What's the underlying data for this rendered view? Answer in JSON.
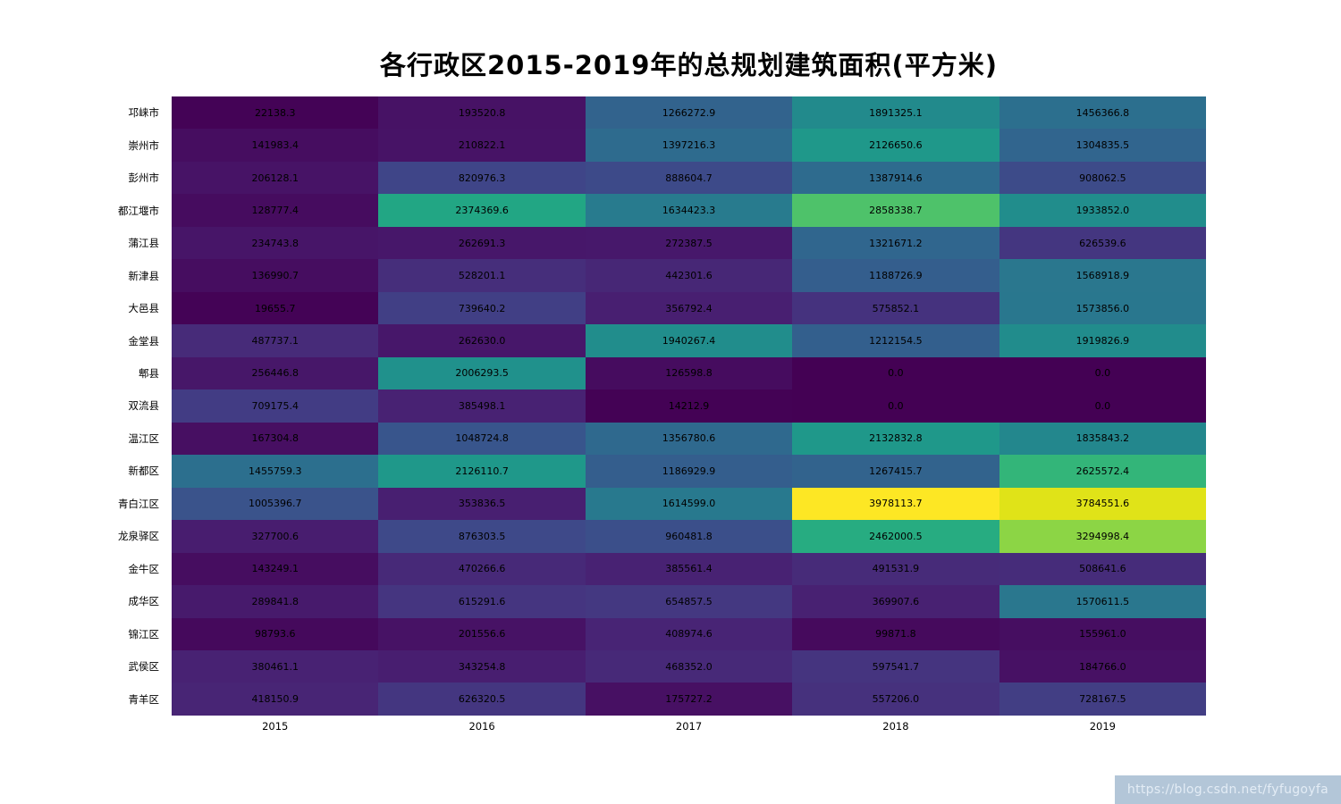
{
  "title": "各行政区2015-2019年的总规划建筑面积(平方米)",
  "watermark": "https://blog.csdn.net/fyfugoyfa",
  "chart_data": {
    "type": "heatmap",
    "title": "各行政区2015-2019年的总规划建筑面积(平方米)",
    "xlabel": "",
    "ylabel": "",
    "colormap": "viridis",
    "vmin": 0.0,
    "vmax": 3978113.7,
    "grid": false,
    "legend": "none",
    "columns": [
      "2015",
      "2016",
      "2017",
      "2018",
      "2019"
    ],
    "rows": [
      "邛崃市",
      "崇州市",
      "彭州市",
      "都江堰市",
      "蒲江县",
      "新津县",
      "大邑县",
      "金堂县",
      "郫县",
      "双流县",
      "温江区",
      "新都区",
      "青白江区",
      "龙泉驿区",
      "金牛区",
      "成华区",
      "锦江区",
      "武侯区",
      "青羊区"
    ],
    "values": [
      [
        "22138.3",
        "193520.8",
        "1266272.9",
        "1891325.1",
        "1456366.8"
      ],
      [
        "141983.4",
        "210822.1",
        "1397216.3",
        "2126650.6",
        "1304835.5"
      ],
      [
        "206128.1",
        "820976.3",
        "888604.7",
        "1387914.6",
        "908062.5"
      ],
      [
        "128777.4",
        "2374369.6",
        "1634423.3",
        "2858338.7",
        "1933852.0"
      ],
      [
        "234743.8",
        "262691.3",
        "272387.5",
        "1321671.2",
        "626539.6"
      ],
      [
        "136990.7",
        "528201.1",
        "442301.6",
        "1188726.9",
        "1568918.9"
      ],
      [
        "19655.7",
        "739640.2",
        "356792.4",
        "575852.1",
        "1573856.0"
      ],
      [
        "487737.1",
        "262630.0",
        "1940267.4",
        "1212154.5",
        "1919826.9"
      ],
      [
        "256446.8",
        "2006293.5",
        "126598.8",
        "0.0",
        "0.0"
      ],
      [
        "709175.4",
        "385498.1",
        "14212.9",
        "0.0",
        "0.0"
      ],
      [
        "167304.8",
        "1048724.8",
        "1356780.6",
        "2132832.8",
        "1835843.2"
      ],
      [
        "1455759.3",
        "2126110.7",
        "1186929.9",
        "1267415.7",
        "2625572.4"
      ],
      [
        "1005396.7",
        "353836.5",
        "1614599.0",
        "3978113.7",
        "3784551.6"
      ],
      [
        "327700.6",
        "876303.5",
        "960481.8",
        "2462000.5",
        "3294998.4"
      ],
      [
        "143249.1",
        "470266.6",
        "385561.4",
        "491531.9",
        "508641.6"
      ],
      [
        "289841.8",
        "615291.6",
        "654857.5",
        "369907.6",
        "1570611.5"
      ],
      [
        "98793.6",
        "201556.6",
        "408974.6",
        "99871.8",
        "155961.0"
      ],
      [
        "380461.1",
        "343254.8",
        "468352.0",
        "597541.7",
        "184766.0"
      ],
      [
        "418150.9",
        "626320.5",
        "175727.2",
        "557206.0",
        "728167.5"
      ]
    ]
  }
}
